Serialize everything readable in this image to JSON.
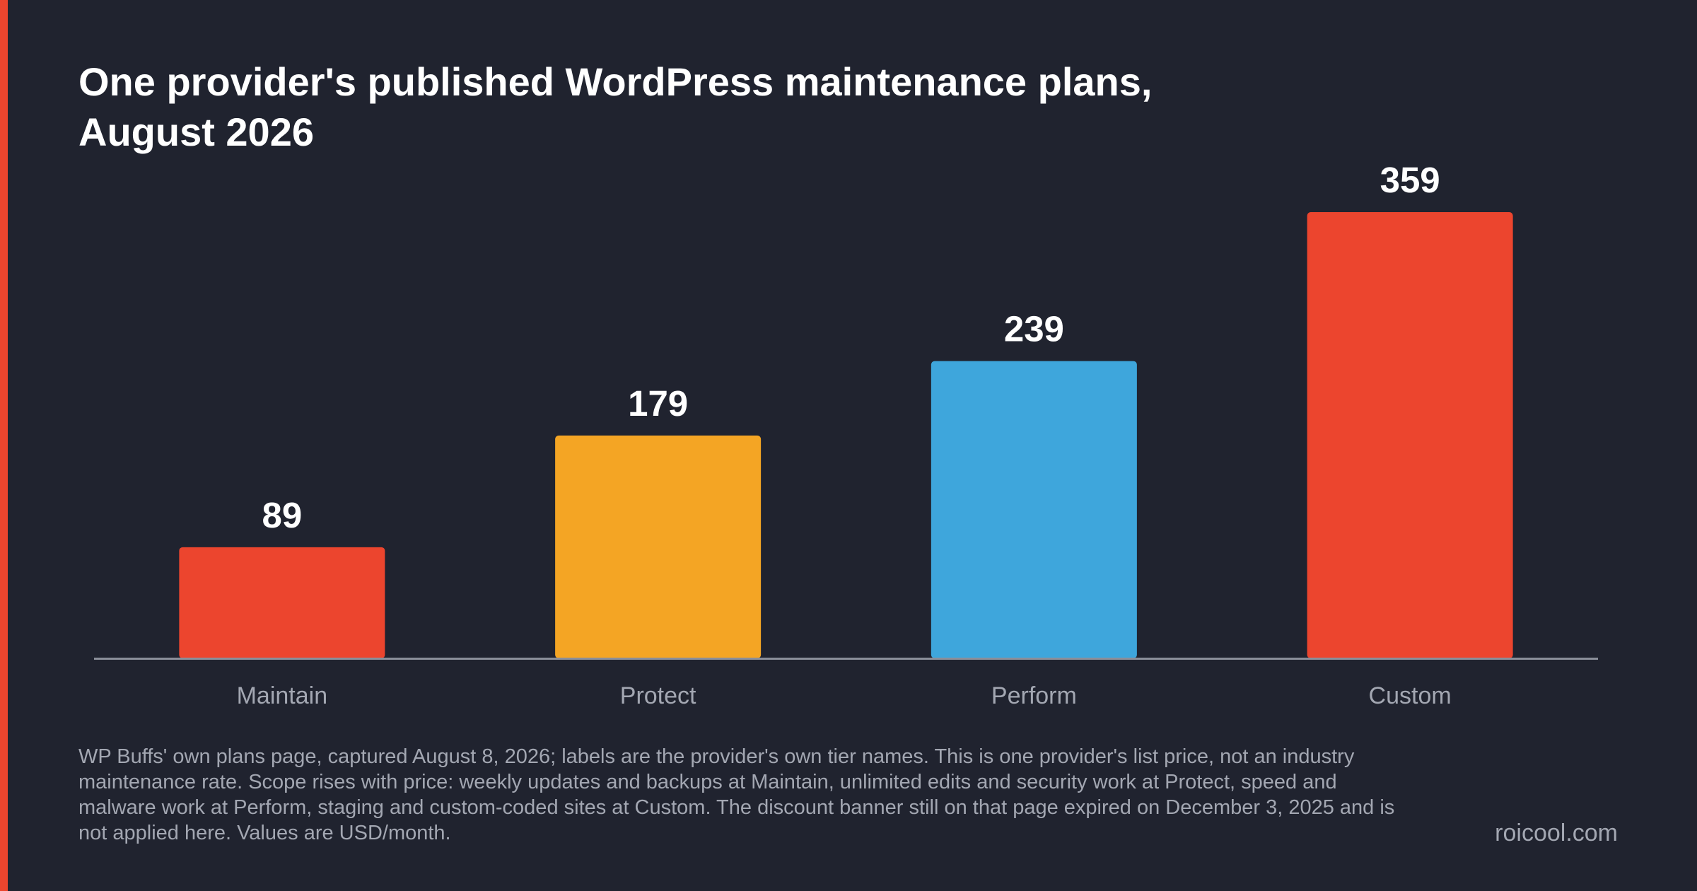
{
  "chart_data": {
    "type": "bar",
    "title": "One provider's published WordPress maintenance plans, August 2026",
    "xlabel": "",
    "ylabel": "",
    "ylim": [
      0,
      359
    ],
    "grid": false,
    "legend": "none",
    "categories": [
      "Maintain",
      "Protect",
      "Perform",
      "Custom"
    ],
    "values": [
      89,
      179,
      239,
      359
    ],
    "colors": [
      "#ec452e",
      "#f4a524",
      "#3ea6dc",
      "#ec452e"
    ],
    "footnote": "WP Buffs' own plans page, captured August 8, 2026; labels are the provider's own tier names. This is one provider's list price, not an industry maintenance rate. Scope rises with price: weekly updates and backups at Maintain, unlimited edits and security work at Protect, speed and malware work at Perform, staging and custom-coded sites at Custom. The discount banner still on that page expired on December 3, 2025 and is not applied here. Values are USD/month.",
    "source": "roicool.com"
  },
  "theme": {
    "background": "#20232f",
    "accent": "#ec452e",
    "axis_line": "#8b8f9a",
    "text_primary": "#ffffff",
    "text_secondary": "#a3a7b2"
  }
}
